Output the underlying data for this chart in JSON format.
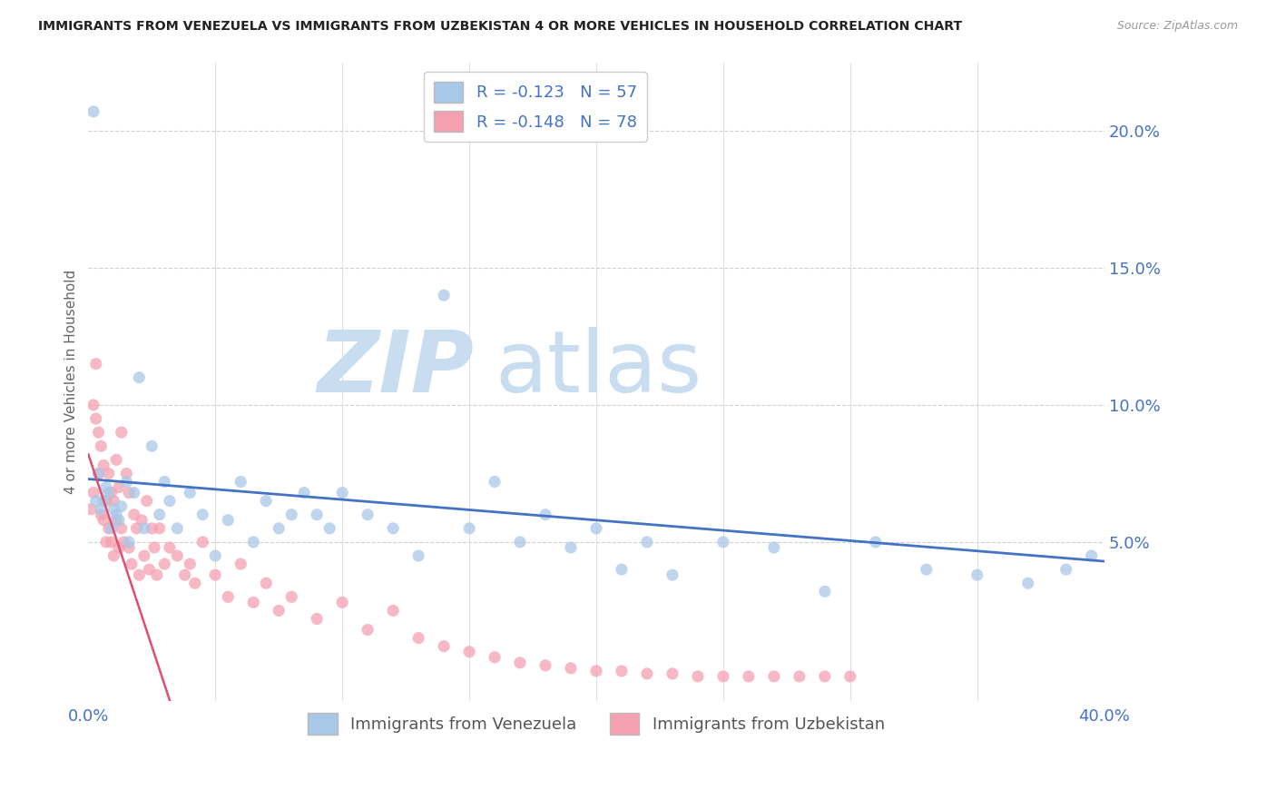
{
  "title": "IMMIGRANTS FROM VENEZUELA VS IMMIGRANTS FROM UZBEKISTAN 4 OR MORE VEHICLES IN HOUSEHOLD CORRELATION CHART",
  "source": "Source: ZipAtlas.com",
  "ylabel_left": "4 or more Vehicles in Household",
  "legend_label_blue": "R = -0.123   N = 57",
  "legend_label_pink": "R = -0.148   N = 78",
  "legend_label_venezuela": "Immigrants from Venezuela",
  "legend_label_uzbekistan": "Immigrants from Uzbekistan",
  "watermark_zip": "ZIP",
  "watermark_atlas": "atlas",
  "xmin": 0.0,
  "xmax": 0.4,
  "ymin": -0.008,
  "ymax": 0.225,
  "xticks": [
    0.0,
    0.05,
    0.1,
    0.15,
    0.2,
    0.25,
    0.3,
    0.35,
    0.4
  ],
  "yticks_right": [
    0.05,
    0.1,
    0.15,
    0.2
  ],
  "ytick_labels_right": [
    "5.0%",
    "10.0%",
    "15.0%",
    "20.0%"
  ],
  "color_blue": "#a8c8e8",
  "color_blue_line": "#4472c4",
  "color_pink": "#f4a0b0",
  "color_pink_line": "#e05070",
  "color_pink_dash": "#e8a0b0",
  "color_axis_blue": "#4472c4",
  "color_watermark_zip": "#c8ddf0",
  "color_watermark_atlas": "#c8ddf0",
  "venezuela_x": [
    0.002,
    0.003,
    0.004,
    0.005,
    0.006,
    0.007,
    0.008,
    0.009,
    0.01,
    0.011,
    0.012,
    0.013,
    0.015,
    0.016,
    0.018,
    0.02,
    0.022,
    0.025,
    0.028,
    0.03,
    0.032,
    0.035,
    0.04,
    0.045,
    0.05,
    0.055,
    0.06,
    0.065,
    0.07,
    0.075,
    0.08,
    0.085,
    0.09,
    0.095,
    0.1,
    0.11,
    0.12,
    0.13,
    0.14,
    0.15,
    0.16,
    0.17,
    0.18,
    0.19,
    0.2,
    0.21,
    0.22,
    0.23,
    0.25,
    0.27,
    0.29,
    0.31,
    0.33,
    0.35,
    0.37,
    0.385,
    0.395
  ],
  "venezuela_y": [
    0.207,
    0.065,
    0.075,
    0.062,
    0.065,
    0.07,
    0.068,
    0.055,
    0.062,
    0.06,
    0.058,
    0.063,
    0.072,
    0.05,
    0.068,
    0.11,
    0.055,
    0.085,
    0.06,
    0.072,
    0.065,
    0.055,
    0.068,
    0.06,
    0.045,
    0.058,
    0.072,
    0.05,
    0.065,
    0.055,
    0.06,
    0.068,
    0.06,
    0.055,
    0.068,
    0.06,
    0.055,
    0.045,
    0.14,
    0.055,
    0.072,
    0.05,
    0.06,
    0.048,
    0.055,
    0.04,
    0.05,
    0.038,
    0.05,
    0.048,
    0.032,
    0.05,
    0.04,
    0.038,
    0.035,
    0.04,
    0.045
  ],
  "uzbekistan_x": [
    0.001,
    0.002,
    0.002,
    0.003,
    0.003,
    0.004,
    0.004,
    0.005,
    0.005,
    0.006,
    0.006,
    0.007,
    0.007,
    0.008,
    0.008,
    0.009,
    0.009,
    0.01,
    0.01,
    0.011,
    0.011,
    0.012,
    0.012,
    0.013,
    0.013,
    0.014,
    0.014,
    0.015,
    0.015,
    0.016,
    0.016,
    0.017,
    0.018,
    0.018,
    0.019,
    0.019,
    0.02,
    0.02,
    0.021,
    0.022,
    0.022,
    0.023,
    0.024,
    0.025,
    0.026,
    0.027,
    0.028,
    0.029,
    0.03,
    0.031,
    0.032,
    0.033,
    0.035,
    0.036,
    0.038,
    0.04,
    0.042,
    0.045,
    0.048,
    0.05,
    0.055,
    0.06,
    0.065,
    0.07,
    0.075,
    0.08,
    0.09,
    0.1,
    0.11,
    0.12,
    0.13,
    0.14,
    0.15,
    0.16,
    0.17,
    0.18,
    0.2,
    0.22
  ],
  "uzbekistan_y": [
    0.062,
    0.068,
    0.1,
    0.095,
    0.115,
    0.075,
    0.09,
    0.06,
    0.085,
    0.058,
    0.078,
    0.05,
    0.065,
    0.055,
    0.075,
    0.05,
    0.068,
    0.045,
    0.065,
    0.058,
    0.08,
    0.048,
    0.07,
    0.055,
    0.09,
    0.05,
    0.075,
    0.048,
    0.068,
    0.042,
    0.06,
    0.055,
    0.038,
    0.058,
    0.045,
    0.065,
    0.04,
    0.055,
    0.048,
    0.038,
    0.055,
    0.042,
    0.048,
    0.045,
    0.038,
    0.042,
    0.035,
    0.05,
    0.038,
    0.03,
    0.042,
    0.028,
    0.035,
    0.025,
    0.03,
    0.022,
    0.028,
    0.018,
    0.025,
    0.015,
    0.012,
    0.01,
    0.008,
    0.006,
    0.005,
    0.004,
    0.003,
    0.003,
    0.002,
    0.002,
    0.001,
    0.001,
    0.001,
    0.001,
    0.001,
    0.001,
    0.001,
    0.001
  ],
  "uzbekistan_x_pink": [
    0.001,
    0.002,
    0.002,
    0.003,
    0.003,
    0.004,
    0.004,
    0.005,
    0.005,
    0.006,
    0.006,
    0.007,
    0.007,
    0.008,
    0.008,
    0.009,
    0.009,
    0.01,
    0.01,
    0.011,
    0.011,
    0.012,
    0.012,
    0.013,
    0.013,
    0.014,
    0.015,
    0.016,
    0.016,
    0.017,
    0.018,
    0.019,
    0.02,
    0.021,
    0.022,
    0.023,
    0.024,
    0.025,
    0.026,
    0.027,
    0.028,
    0.03,
    0.032,
    0.035,
    0.038,
    0.04,
    0.042,
    0.045,
    0.05,
    0.055,
    0.06,
    0.065,
    0.07,
    0.075,
    0.08,
    0.09,
    0.1,
    0.11,
    0.12,
    0.13,
    0.14,
    0.15,
    0.16,
    0.17,
    0.18,
    0.19,
    0.2,
    0.21,
    0.22,
    0.23,
    0.24,
    0.25,
    0.26,
    0.27,
    0.28,
    0.29,
    0.3
  ],
  "uzbekistan_y_pink": [
    0.062,
    0.068,
    0.1,
    0.095,
    0.115,
    0.075,
    0.09,
    0.06,
    0.085,
    0.058,
    0.078,
    0.05,
    0.065,
    0.055,
    0.075,
    0.05,
    0.068,
    0.045,
    0.065,
    0.058,
    0.08,
    0.048,
    0.07,
    0.055,
    0.09,
    0.05,
    0.075,
    0.048,
    0.068,
    0.042,
    0.06,
    0.055,
    0.038,
    0.058,
    0.045,
    0.065,
    0.04,
    0.055,
    0.048,
    0.038,
    0.055,
    0.042,
    0.048,
    0.045,
    0.038,
    0.042,
    0.035,
    0.05,
    0.038,
    0.03,
    0.042,
    0.028,
    0.035,
    0.025,
    0.03,
    0.022,
    0.028,
    0.018,
    0.025,
    0.015,
    0.012,
    0.01,
    0.008,
    0.006,
    0.005,
    0.004,
    0.003,
    0.003,
    0.002,
    0.002,
    0.001,
    0.001,
    0.001,
    0.001,
    0.001,
    0.001,
    0.001
  ]
}
